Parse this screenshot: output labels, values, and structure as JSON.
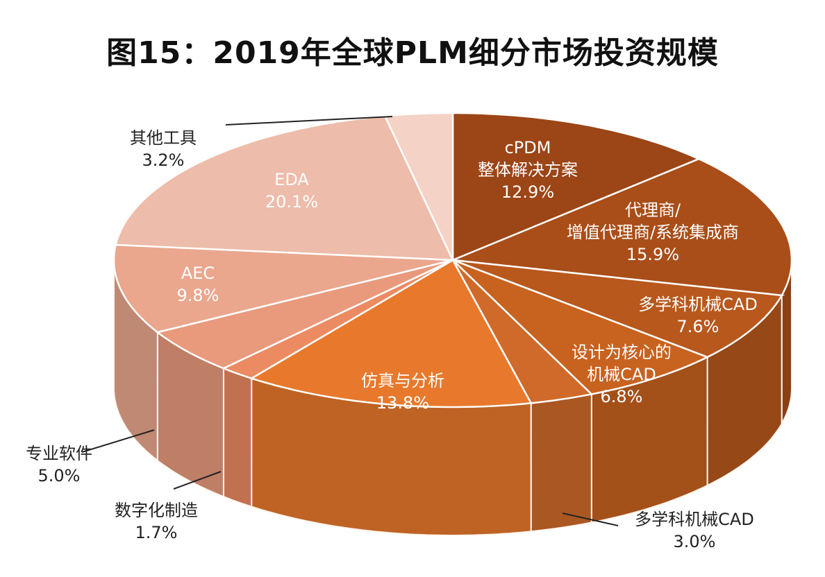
{
  "title": "图15：2019年全球PLM细分市场投资规模",
  "chart_data": {
    "type": "pie",
    "style": "3d",
    "title": "图15：2019年全球PLM细分市场投资规模",
    "unit": "%",
    "slices": [
      {
        "lines": [
          "cPDM",
          "整体解决方案"
        ],
        "value": 12.9,
        "value_label": "12.9%",
        "color": "#9c4516",
        "label_side": "inside"
      },
      {
        "lines": [
          "代理商/",
          "增值代理商/系统集成商"
        ],
        "value": 15.9,
        "value_label": "15.9%",
        "color": "#a94e18",
        "label_side": "inside"
      },
      {
        "lines": [
          "多学科机械CAD"
        ],
        "value": 7.6,
        "value_label": "7.6%",
        "color": "#b8581c",
        "label_side": "inside"
      },
      {
        "lines": [
          "设计为核心的",
          "机械CAD"
        ],
        "value": 6.8,
        "value_label": "6.8%",
        "color": "#c8621f",
        "label_side": "inside"
      },
      {
        "lines": [
          "多学科机械CAD"
        ],
        "value": 3.0,
        "value_label": "3.0%",
        "color": "#cf6a2a",
        "label_side": "outside"
      },
      {
        "lines": [
          "仿真与分析"
        ],
        "value": 13.8,
        "value_label": "13.8%",
        "color": "#e8792c",
        "label_side": "inside"
      },
      {
        "lines": [
          "数字化制造"
        ],
        "value": 1.7,
        "value_label": "1.7%",
        "color": "#ec8a62",
        "label_side": "outside"
      },
      {
        "lines": [
          "专业软件"
        ],
        "value": 5.0,
        "value_label": "5.0%",
        "color": "#e99a7c",
        "label_side": "outside"
      },
      {
        "lines": [
          "AEC"
        ],
        "value": 9.8,
        "value_label": "9.8%",
        "color": "#eaa78e",
        "label_side": "inside"
      },
      {
        "lines": [
          "EDA"
        ],
        "value": 20.1,
        "value_label": "20.1%",
        "color": "#eebcaa",
        "label_side": "inside"
      },
      {
        "lines": [
          "其他工具"
        ],
        "value": 3.2,
        "value_label": "3.2%",
        "color": "#f4d2c6",
        "label_side": "outside"
      }
    ]
  }
}
